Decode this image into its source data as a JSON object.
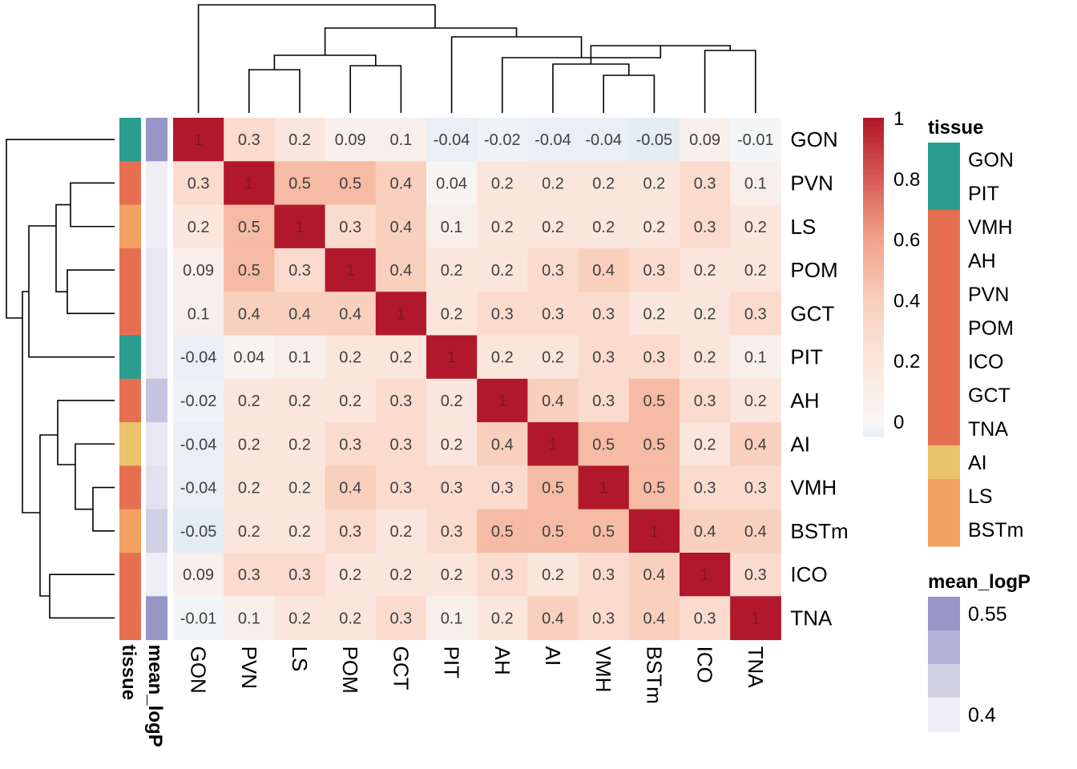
{
  "chart_data": {
    "type": "heatmap",
    "rows": [
      "GON",
      "PVN",
      "LS",
      "POM",
      "GCT",
      "PIT",
      "AH",
      "AI",
      "VMH",
      "BSTm",
      "ICO",
      "TNA"
    ],
    "columns": [
      "GON",
      "PVN",
      "LS",
      "POM",
      "GCT",
      "PIT",
      "AH",
      "AI",
      "VMH",
      "BSTm",
      "ICO",
      "TNA"
    ],
    "cells": [
      [
        "1",
        "0.3",
        "0.2",
        "0.09",
        "0.1",
        "-0.04",
        "-0.02",
        "-0.04",
        "-0.04",
        "-0.05",
        "0.09",
        "-0.01"
      ],
      [
        "0.3",
        "1",
        "0.5",
        "0.5",
        "0.4",
        "0.04",
        "0.2",
        "0.2",
        "0.2",
        "0.2",
        "0.3",
        "0.1"
      ],
      [
        "0.2",
        "0.5",
        "1",
        "0.3",
        "0.4",
        "0.1",
        "0.2",
        "0.2",
        "0.2",
        "0.2",
        "0.3",
        "0.2"
      ],
      [
        "0.09",
        "0.5",
        "0.3",
        "1",
        "0.4",
        "0.2",
        "0.2",
        "0.3",
        "0.4",
        "0.3",
        "0.2",
        "0.2"
      ],
      [
        "0.1",
        "0.4",
        "0.4",
        "0.4",
        "1",
        "0.2",
        "0.3",
        "0.3",
        "0.3",
        "0.2",
        "0.2",
        "0.3"
      ],
      [
        "-0.04",
        "0.04",
        "0.1",
        "0.2",
        "0.2",
        "1",
        "0.2",
        "0.2",
        "0.3",
        "0.3",
        "0.2",
        "0.1"
      ],
      [
        "-0.02",
        "0.2",
        "0.2",
        "0.2",
        "0.3",
        "0.2",
        "1",
        "0.4",
        "0.3",
        "0.5",
        "0.3",
        "0.2"
      ],
      [
        "-0.04",
        "0.2",
        "0.2",
        "0.3",
        "0.3",
        "0.2",
        "0.4",
        "1",
        "0.5",
        "0.5",
        "0.2",
        "0.4"
      ],
      [
        "-0.04",
        "0.2",
        "0.2",
        "0.4",
        "0.3",
        "0.3",
        "0.3",
        "0.5",
        "1",
        "0.5",
        "0.3",
        "0.3"
      ],
      [
        "-0.05",
        "0.2",
        "0.2",
        "0.3",
        "0.2",
        "0.3",
        "0.5",
        "0.5",
        "0.5",
        "1",
        "0.4",
        "0.4"
      ],
      [
        "0.09",
        "0.3",
        "0.3",
        "0.2",
        "0.2",
        "0.2",
        "0.3",
        "0.2",
        "0.3",
        "0.4",
        "1",
        "0.3"
      ],
      [
        "-0.01",
        "0.1",
        "0.2",
        "0.2",
        "0.3",
        "0.1",
        "0.2",
        "0.4",
        "0.3",
        "0.4",
        "0.3",
        "1"
      ]
    ],
    "colorscale": {
      "stops": [
        {
          "value": -0.05,
          "color": "#e4edf4"
        },
        {
          "value": 0,
          "color": "#f7f7f7"
        },
        {
          "value": 0.2,
          "color": "#fbe6dd"
        },
        {
          "value": 0.4,
          "color": "#f8d0bd"
        },
        {
          "value": 0.6,
          "color": "#f1a58a"
        },
        {
          "value": 0.8,
          "color": "#d85e55"
        },
        {
          "value": 1.0,
          "color": "#b2182b"
        }
      ],
      "ticks": [
        1,
        0.8,
        0.6,
        0.4,
        0.2,
        0
      ]
    },
    "row_annotations": [
      {
        "name": "tissue",
        "values": [
          "GON",
          "PVN",
          "LS",
          "POM",
          "GCT",
          "PIT",
          "AH",
          "AI",
          "VMH",
          "BSTm",
          "ICO",
          "TNA"
        ],
        "groups": [
          {
            "name": "GON",
            "color": "#2a9d8f"
          },
          {
            "name": "PIT",
            "color": "#2a9d8f"
          },
          {
            "name": "VMH",
            "color": "#e76f51"
          },
          {
            "name": "AH",
            "color": "#e76f51"
          },
          {
            "name": "PVN",
            "color": "#e76f51"
          },
          {
            "name": "POM",
            "color": "#e76f51"
          },
          {
            "name": "ICO",
            "color": "#e76f51"
          },
          {
            "name": "GCT",
            "color": "#e76f51"
          },
          {
            "name": "TNA",
            "color": "#e76f51"
          },
          {
            "name": "AI",
            "color": "#e9c46a"
          },
          {
            "name": "LS",
            "color": "#f4a261"
          },
          {
            "name": "BSTm",
            "color": "#f4a261"
          }
        ]
      },
      {
        "name": "mean_logP",
        "values": [
          0.55,
          0.4,
          0.4,
          0.41,
          0.41,
          0.41,
          0.47,
          0.41,
          0.42,
          0.45,
          0.4,
          0.55
        ],
        "range": [
          0.4,
          0.55
        ],
        "low_color": "#efedf5",
        "high_color": "#9795c6",
        "legend_ticks": [
          "0.55",
          "0.4"
        ]
      }
    ]
  },
  "legends": {
    "tissue_title": "tissue",
    "mean_logP_title": "mean_logP"
  }
}
